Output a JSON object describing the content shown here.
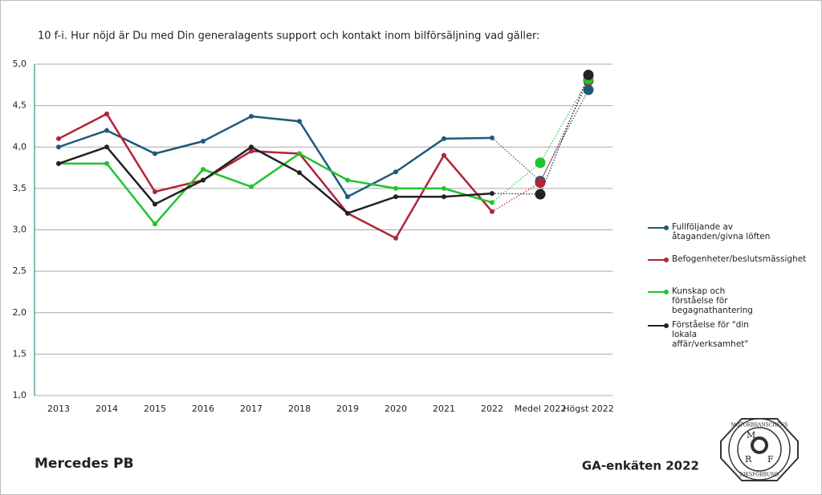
{
  "chart_data": {
    "type": "line",
    "title": "10 f-i. Hur nöjd är Du med Din generalagents support och kontakt inom bilförsäljning vad gäller:",
    "categories": [
      "2013",
      "2014",
      "2015",
      "2016",
      "2017",
      "2018",
      "2019",
      "2020",
      "2021",
      "2022",
      "Medel 2022",
      "Högst 2022"
    ],
    "series": [
      {
        "name": "Fullföljande av åtaganden/givna löften",
        "color": "#1f5a7a",
        "values": [
          4.0,
          4.2,
          3.92,
          4.07,
          4.37,
          4.31,
          3.4,
          3.7,
          4.1,
          4.11,
          3.59,
          4.69
        ]
      },
      {
        "name": "Befogenheter/beslutsmässighet",
        "color": "#b0243a",
        "values": [
          4.1,
          4.4,
          3.46,
          3.6,
          3.95,
          3.92,
          3.2,
          2.9,
          3.9,
          3.22,
          3.57,
          4.8
        ]
      },
      {
        "name": "Kunskap och förståelse för begagnathantering",
        "color": "#22c32e",
        "values": [
          3.8,
          3.8,
          3.07,
          3.73,
          3.52,
          3.92,
          3.6,
          3.5,
          3.5,
          3.33,
          3.81,
          4.82
        ]
      },
      {
        "name": "Förståelse för \"din lokala affär/verksamhet\"",
        "color": "#222222",
        "values": [
          3.8,
          4.0,
          3.31,
          3.6,
          4.0,
          3.69,
          3.2,
          3.4,
          3.4,
          3.44,
          3.43,
          4.87
        ]
      }
    ],
    "ylim": [
      1.0,
      5.0
    ],
    "yticks": [
      {
        "value": 1.0,
        "label": "1,0"
      },
      {
        "value": 1.5,
        "label": "1,5"
      },
      {
        "value": 2.0,
        "label": "2,0"
      },
      {
        "value": 2.5,
        "label": "2,5"
      },
      {
        "value": 3.0,
        "label": "3,0"
      },
      {
        "value": 3.5,
        "label": "3,5"
      },
      {
        "value": 4.0,
        "label": "4,0"
      },
      {
        "value": 4.5,
        "label": "4,5"
      },
      {
        "value": 5.0,
        "label": "5,0"
      }
    ],
    "grid": true,
    "legend": "right"
  },
  "footer": {
    "left": "Mercedes PB",
    "right": "GA-enkäten 2022"
  },
  "logo": {
    "top": "MOTORBRANSCHENS",
    "bottom": "RIKSFÖRBUND",
    "letters": [
      "M",
      "R",
      "F"
    ]
  }
}
